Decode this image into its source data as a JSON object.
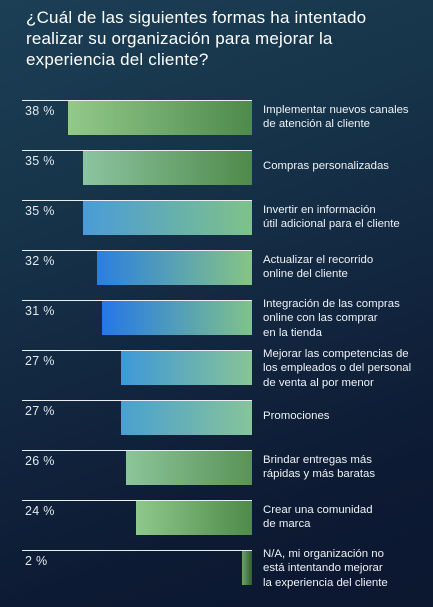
{
  "title": "¿Cuál de las siguientes formas ha intentado realizar su organización para mejorar la experiencia del cliente?",
  "chart_data": {
    "type": "bar",
    "orientation": "horizontal",
    "title": "¿Cuál de las siguientes formas ha intentado realizar su organización para mejorar la experiencia del cliente?",
    "unit": "%",
    "xlim": [
      0,
      100
    ],
    "grid": false,
    "categories": [
      "Implementar nuevos canales de atención al cliente",
      "Compras personalizadas",
      "Invertir en información útil adicional para el cliente",
      "Actualizar el recorrido online del cliente",
      "Integración de las compras online con las comprar en la tienda",
      "Mejorar las competencias de los empleados o del personal de venta al por menor",
      "Promociones",
      "Brindar entregas más rápidas y más baratas",
      "Crear una comunidad de marca",
      "N/A, mi organización no está intentando mejorar la experiencia del cliente"
    ],
    "values": [
      38,
      35,
      35,
      32,
      31,
      27,
      27,
      26,
      24,
      2
    ],
    "value_labels": [
      "38 %",
      "35 %",
      "35 %",
      "32 %",
      "31 %",
      "27 %",
      "27 %",
      "26 %",
      "24 %",
      "2 %"
    ],
    "label_lines": [
      [
        "Implementar nuevos canales",
        "de atención al cliente"
      ],
      [
        "Compras personalizadas"
      ],
      [
        "Invertir en información",
        "útil adicional para el cliente"
      ],
      [
        "Actualizar el recorrido",
        "online del cliente"
      ],
      [
        "Integración de las compras",
        "online con las comprar",
        "en la tienda"
      ],
      [
        "Mejorar las competencias de",
        "los empleados o del personal",
        "de venta al por menor"
      ],
      [
        "Promociones"
      ],
      [
        "Brindar entregas más",
        "rápidas y más baratas"
      ],
      [
        "Crear una comunidad",
        "de marca"
      ],
      [
        "N/A, mi organización no",
        "está intentando mejorar",
        "la experiencia del cliente"
      ]
    ],
    "bar_colors": [
      [
        "#93c98b",
        "#4d8a4c"
      ],
      [
        "#8bc4a0",
        "#4f8a4a"
      ],
      [
        "#4a9bd8",
        "#7ec289"
      ],
      [
        "#2a7fe0",
        "#86c486"
      ],
      [
        "#2577e8",
        "#7fc38a"
      ],
      [
        "#3d98d8",
        "#88c497"
      ],
      [
        "#4aa0d0",
        "#86c49a"
      ],
      [
        "#8bc59a",
        "#5a9256"
      ],
      [
        "#8fc88c",
        "#4e8a49"
      ],
      [
        "#6aa562",
        "#335d34"
      ]
    ]
  }
}
